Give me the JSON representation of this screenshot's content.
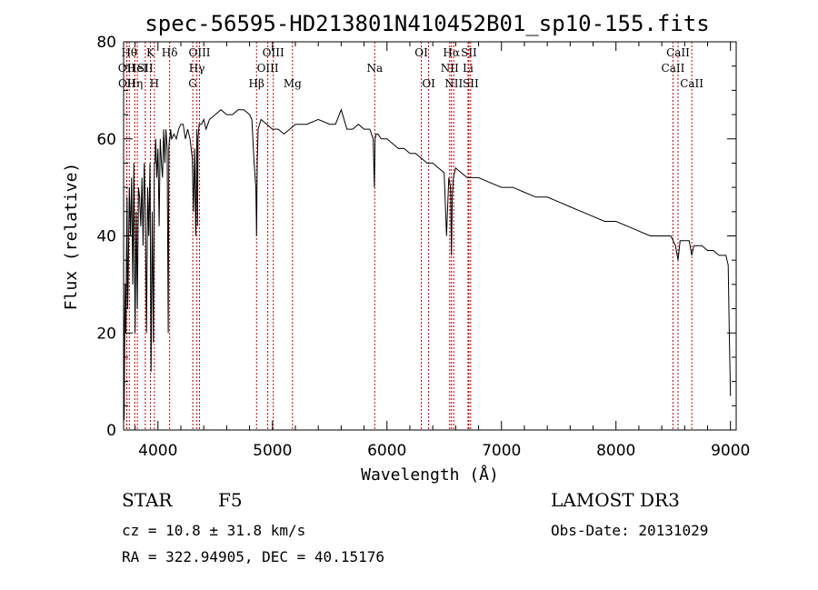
{
  "chart_data": {
    "type": "line",
    "title": "spec-56595-HD213801N410452B01_sp10-155.fits",
    "xlabel": "Wavelength (Å)",
    "ylabel": "Flux (relative)",
    "xlim": [
      3700,
      9050
    ],
    "ylim": [
      0,
      80
    ],
    "xticks": [
      4000,
      5000,
      6000,
      7000,
      8000,
      9000
    ],
    "yticks": [
      0,
      20,
      40,
      60,
      80
    ],
    "grid": false,
    "line_color": "#000000",
    "marker_color": "#cc0000",
    "series": [
      {
        "x": [
          3700,
          3705,
          3710,
          3715,
          3720,
          3725,
          3730,
          3735,
          3740,
          3750,
          3760,
          3770,
          3780,
          3790,
          3800,
          3810,
          3820,
          3830,
          3840,
          3850,
          3860,
          3870,
          3880,
          3890,
          3900,
          3910,
          3920,
          3930,
          3940,
          3950,
          3960,
          3968,
          3975,
          3980,
          3990,
          4000,
          4010,
          4020,
          4030,
          4040,
          4050,
          4060,
          4070,
          4080,
          4090,
          4095,
          4100,
          4105,
          4110,
          4120,
          4140,
          4160,
          4180,
          4200,
          4220,
          4240,
          4260,
          4280,
          4300,
          4310,
          4320,
          4330,
          4340,
          4345,
          4350,
          4360,
          4380,
          4400,
          4420,
          4450,
          4500,
          4550,
          4600,
          4650,
          4700,
          4750,
          4800,
          4820,
          4840,
          4855,
          4861,
          4867,
          4875,
          4900,
          4950,
          5000,
          5050,
          5100,
          5150,
          5200,
          5300,
          5400,
          5500,
          5550,
          5600,
          5650,
          5700,
          5750,
          5800,
          5850,
          5880,
          5890,
          5896,
          5905,
          5920,
          5950,
          6000,
          6050,
          6100,
          6150,
          6200,
          6250,
          6300,
          6350,
          6400,
          6450,
          6500,
          6520,
          6540,
          6555,
          6563,
          6570,
          6580,
          6600,
          6650,
          6700,
          6750,
          6800,
          6900,
          7000,
          7100,
          7200,
          7300,
          7400,
          7500,
          7600,
          7700,
          7800,
          7900,
          8000,
          8100,
          8200,
          8300,
          8400,
          8480,
          8500,
          8520,
          8542,
          8560,
          8600,
          8640,
          8662,
          8680,
          8700,
          8750,
          8800,
          8850,
          8900,
          8940,
          8960,
          8970,
          8980,
          8990,
          9000
        ],
        "y": [
          35,
          2,
          22,
          30,
          20,
          35,
          48,
          25,
          30,
          50,
          40,
          52,
          30,
          55,
          20,
          45,
          25,
          50,
          48,
          42,
          52,
          38,
          55,
          45,
          20,
          50,
          40,
          55,
          12,
          45,
          18,
          55,
          55,
          60,
          52,
          58,
          42,
          60,
          55,
          52,
          62,
          55,
          62,
          58,
          20,
          58,
          60,
          60,
          62,
          60,
          61,
          60,
          62,
          63,
          63,
          60,
          62,
          60,
          56,
          45,
          58,
          40,
          62,
          42,
          60,
          63,
          63,
          64,
          62,
          64,
          65,
          66,
          65,
          65,
          66,
          66,
          65,
          64,
          55,
          50,
          40,
          55,
          62,
          64,
          63,
          62,
          62,
          61,
          62,
          63,
          63,
          64,
          63,
          63,
          66,
          62,
          62,
          63,
          62,
          62,
          60,
          50,
          60,
          61,
          61,
          60,
          60,
          59,
          58,
          58,
          57,
          57,
          56,
          55,
          55,
          54,
          53,
          40,
          52,
          50,
          36,
          48,
          52,
          54,
          53,
          52,
          52,
          52,
          51,
          50,
          50,
          49,
          48,
          48,
          47,
          46,
          45,
          44,
          43,
          43,
          42,
          41,
          40,
          40,
          40,
          39,
          38,
          35,
          39,
          39,
          39,
          36,
          38,
          38,
          38,
          37,
          37,
          36,
          36,
          36,
          35,
          34,
          20,
          7
        ]
      }
    ],
    "line_markers": [
      {
        "w": 3727,
        "label": "OII",
        "row": 2
      },
      {
        "w": 3729,
        "label": "OII",
        "row": 3
      },
      {
        "w": 3750,
        "label": "Hθ",
        "row": 1
      },
      {
        "w": 3798,
        "label": "Hη",
        "row": 3
      },
      {
        "w": 3820,
        "label": "HeI",
        "row": 2
      },
      {
        "w": 3889,
        "label": "SII",
        "row": 2
      },
      {
        "w": 3934,
        "label": "K",
        "row": 1
      },
      {
        "w": 3969,
        "label": "H",
        "row": 3
      },
      {
        "w": 4102,
        "label": "Hδ",
        "row": 1
      },
      {
        "w": 4304,
        "label": "G",
        "row": 3
      },
      {
        "w": 4340,
        "label": "Hγ",
        "row": 2
      },
      {
        "w": 4363,
        "label": "OIII",
        "row": 1
      },
      {
        "w": 4861,
        "label": "Hβ",
        "row": 3
      },
      {
        "w": 4959,
        "label": "OIII",
        "row": 2
      },
      {
        "w": 5007,
        "label": "OIII",
        "row": 1
      },
      {
        "w": 5175,
        "label": "Mg",
        "row": 3
      },
      {
        "w": 5893,
        "label": "Na",
        "row": 2
      },
      {
        "w": 6300,
        "label": "OI",
        "row": 1
      },
      {
        "w": 6364,
        "label": "OI",
        "row": 3
      },
      {
        "w": 6548,
        "label": "NII",
        "row": 2
      },
      {
        "w": 6563,
        "label": "Hα",
        "row": 1
      },
      {
        "w": 6583,
        "label": "NII",
        "row": 3
      },
      {
        "w": 6708,
        "label": "Li",
        "row": 2
      },
      {
        "w": 6716,
        "label": "SII",
        "row": 1
      },
      {
        "w": 6731,
        "label": "SII",
        "row": 3
      },
      {
        "w": 8498,
        "label": "CaII",
        "row": 2
      },
      {
        "w": 8542,
        "label": "CaII",
        "row": 1
      },
      {
        "w": 8662,
        "label": "CaII",
        "row": 3
      }
    ]
  },
  "info": {
    "object_class": "STAR",
    "subclass": "F5",
    "survey": "LAMOST DR3",
    "redshift": "cz = 10.8 ± 31.8 km/s",
    "obs_date": "Obs-Date: 20131029",
    "coords": "RA = 322.94905, DEC =  40.15176"
  }
}
